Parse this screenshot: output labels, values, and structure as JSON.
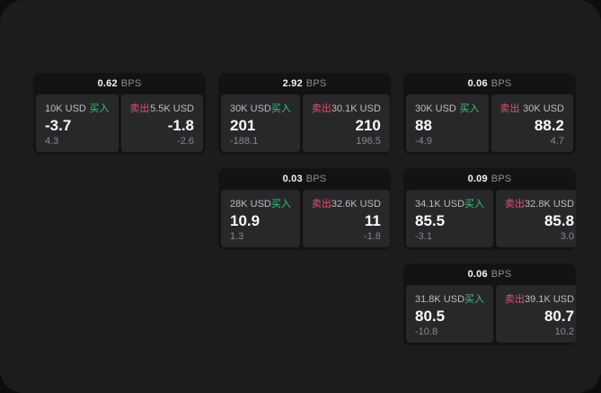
{
  "labels": {
    "bps_unit": "BPS",
    "buy": "买入",
    "sell": "卖出"
  },
  "colors": {
    "buy_green": "#41c077",
    "sell_red": "#e1516b",
    "panel_bg": "#1c1c1e",
    "card_bg": "#131315",
    "subcard_bg": "#28282b"
  },
  "cards": [
    {
      "bps": "0.62",
      "buy": {
        "amount": "10K USD",
        "price": "-3.7",
        "change": "4.3"
      },
      "sell": {
        "amount": "5.5K USD",
        "price": "-1.8",
        "change": "-2.6"
      }
    },
    {
      "bps": "2.92",
      "buy": {
        "amount": "30K USD",
        "price": "201",
        "change": "-188.1"
      },
      "sell": {
        "amount": "30.1K USD",
        "price": "210",
        "change": "196.5"
      }
    },
    {
      "bps": "0.06",
      "buy": {
        "amount": "30K USD",
        "price": "88",
        "change": "-4.9"
      },
      "sell": {
        "amount": "30K USD",
        "price": "88.2",
        "change": "4.7"
      }
    },
    {
      "bps": "0.03",
      "buy": {
        "amount": "28K USD",
        "price": "10.9",
        "change": "1.3"
      },
      "sell": {
        "amount": "32.6K USD",
        "price": "11",
        "change": "-1.8"
      }
    },
    {
      "bps": "0.09",
      "buy": {
        "amount": "34.1K USD",
        "price": "85.5",
        "change": "-3.1"
      },
      "sell": {
        "amount": "32.8K USD",
        "price": "85.8",
        "change": "3.0"
      }
    },
    {
      "bps": "0.06",
      "buy": {
        "amount": "31.8K USD",
        "price": "80.5",
        "change": "-10.8"
      },
      "sell": {
        "amount": "39.1K USD",
        "price": "80.7",
        "change": "10.2"
      }
    }
  ]
}
